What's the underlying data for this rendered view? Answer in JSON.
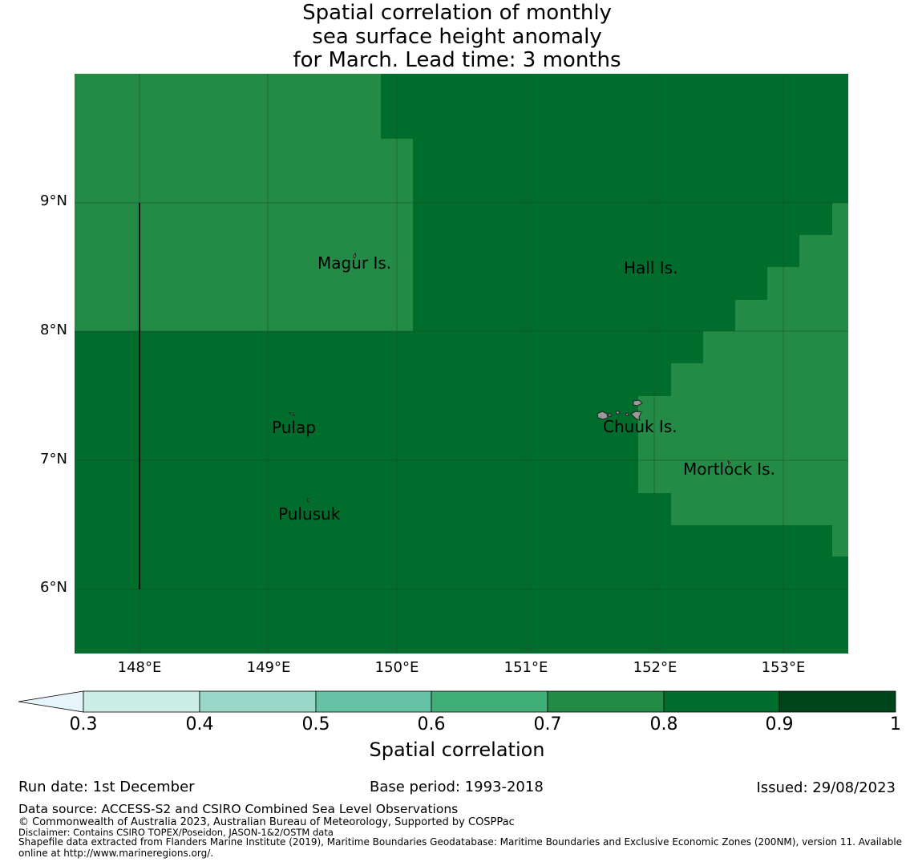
{
  "title": {
    "line1": "Spatial correlation of monthly",
    "line2": "sea surface height anomaly",
    "line3": "for March. Lead time: 3 months"
  },
  "map": {
    "lat_labels": [
      "9°N",
      "8°N",
      "7°N",
      "6°N"
    ],
    "lon_labels": [
      "148°E",
      "149°E",
      "150°E",
      "151°E",
      "152°E",
      "153°E"
    ],
    "places": [
      {
        "name": "Magur Is."
      },
      {
        "name": "Hall Is."
      },
      {
        "name": "Pulap"
      },
      {
        "name": "Chuuk Is."
      },
      {
        "name": "Mortlock Is."
      },
      {
        "name": "Pulusuk"
      }
    ],
    "colors": {
      "corr_0_7_0_8": "#238b45",
      "corr_0_8_0_9": "#006d2c",
      "gridline": "#1a4d2a",
      "island": "#999999"
    }
  },
  "colorbar": {
    "label": "Spatial correlation",
    "ticks": [
      "0.3",
      "0.4",
      "0.5",
      "0.6",
      "0.7",
      "0.8",
      "0.9",
      "1"
    ],
    "colors": [
      "#ccece6",
      "#99d8c9",
      "#66c2a4",
      "#41ae76",
      "#238b45",
      "#006d2c",
      "#00441b"
    ],
    "extend_color": "#e5f5f9"
  },
  "footer": {
    "run_date": "Run date: 1st December",
    "base_period": "Base period: 1993-2018",
    "issued": "Issued: 29/08/2023",
    "data_source": "Data source: ACCESS-S2 and CSIRO Combined Sea Level Observations",
    "copyright": "© Commonwealth of Australia 2023, Australian Bureau of Meteorology, Supported by COSPPac",
    "disclaimer": "Disclaimer: Contains CSIRO TOPEX/Poseidon, JASON-1&2/OSTM data",
    "shapefile_line1": "Shapefile data extracted from Flanders Marine Institute (2019), Maritime Boundaries Geodatabase: Maritime Boundaries and Exclusive Economic Zones (200NM), version 11. Available",
    "shapefile_line2": "online at http://www.marineregions.org/."
  }
}
